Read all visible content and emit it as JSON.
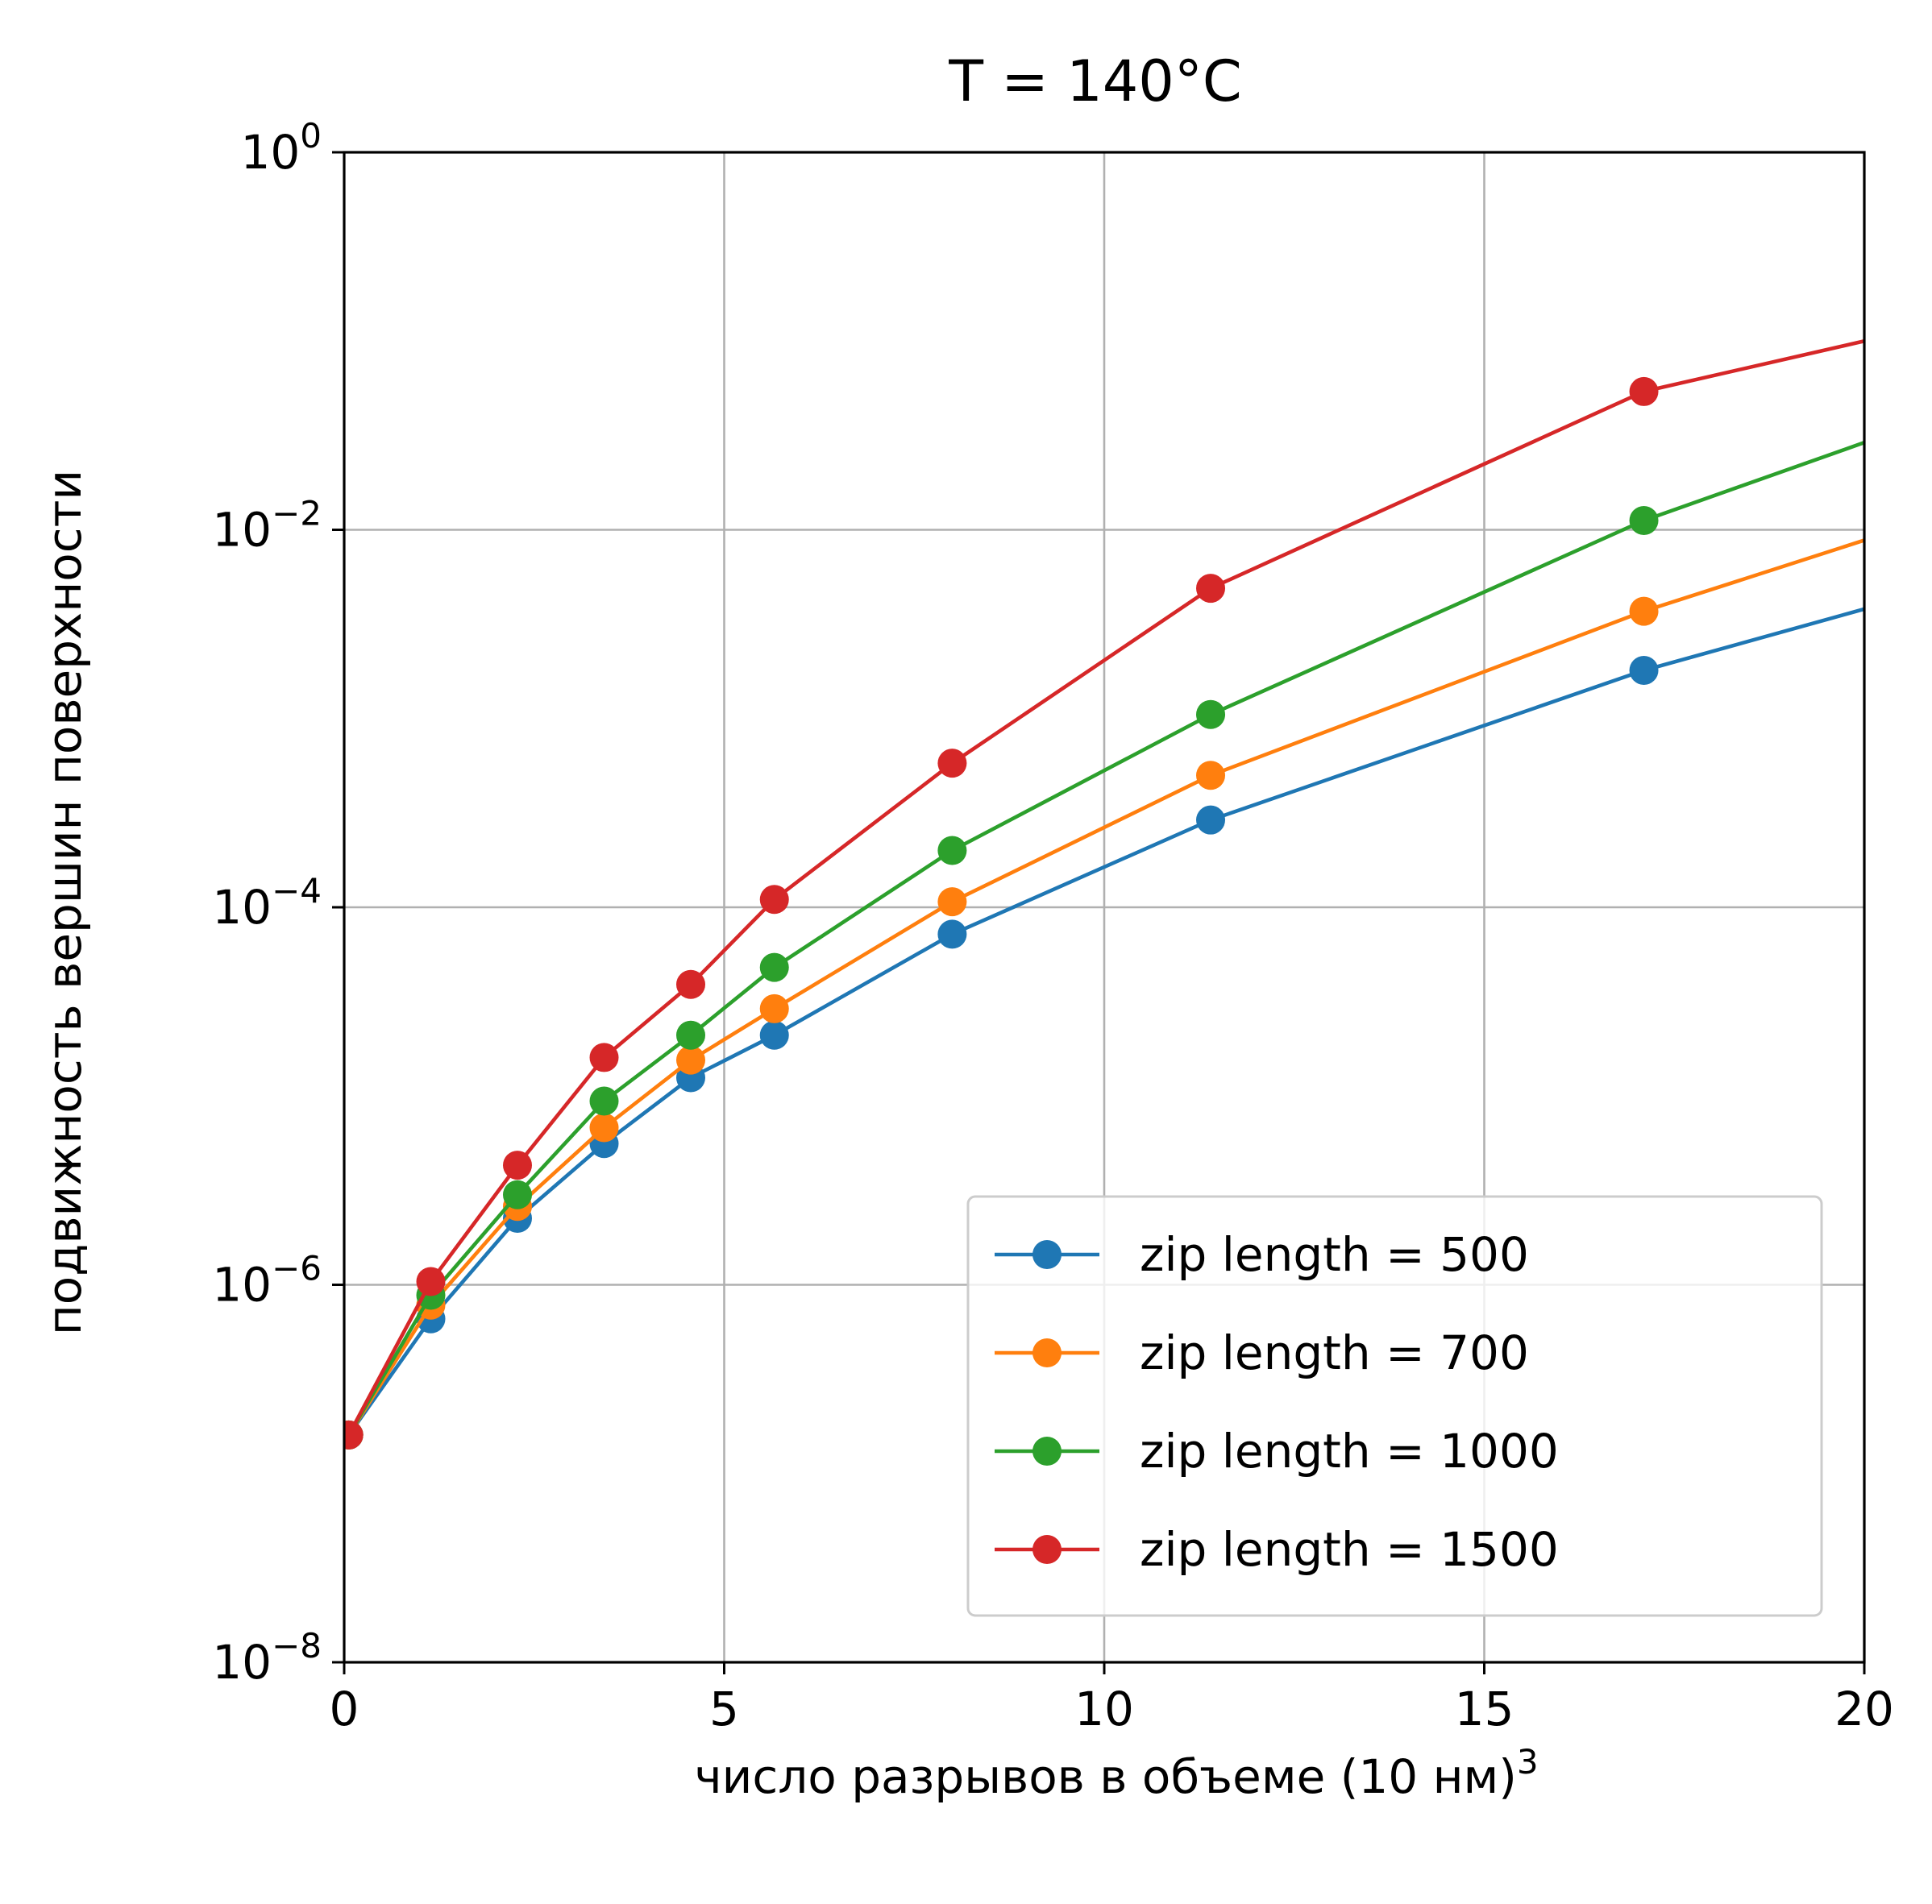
{
  "chart_data": {
    "type": "line",
    "title": "T = 140°C",
    "xlabel": "число разрывов в объеме (10 нм)",
    "xlabel_sup": "3",
    "ylabel": "подвижность вершин поверхности",
    "xlim": [
      0,
      20
    ],
    "ylim": [
      1e-08,
      1
    ],
    "yscale": "log",
    "grid": true,
    "legend_position": "lower-right",
    "x_ticks": [
      {
        "value": 0,
        "label": "0"
      },
      {
        "value": 5,
        "label": "5"
      },
      {
        "value": 10,
        "label": "10"
      },
      {
        "value": 15,
        "label": "15"
      },
      {
        "value": 20,
        "label": "20"
      }
    ],
    "y_ticks": [
      {
        "value": 1e-08,
        "base": "10",
        "exp": "−8"
      },
      {
        "value": 1e-06,
        "base": "10",
        "exp": "−6"
      },
      {
        "value": 0.0001,
        "base": "10",
        "exp": "−4"
      },
      {
        "value": 0.01,
        "base": "10",
        "exp": "−2"
      },
      {
        "value": 1,
        "base": "10",
        "exp": "0"
      }
    ],
    "x": [
      0.06,
      1.14,
      2.28,
      3.42,
      4.56,
      5.66,
      8.0,
      11.4,
      17.1,
      20.0
    ],
    "series": [
      {
        "name": "zip length = 500",
        "color": "#1f77b4",
        "values": [
          1.6e-07,
          6.6e-07,
          2.25e-06,
          5.6e-06,
          1.25e-05,
          2.1e-05,
          7.2e-05,
          0.00029,
          0.0018,
          0.0038
        ]
      },
      {
        "name": "zip length = 700",
        "color": "#ff7f0e",
        "values": [
          1.6e-07,
          7.8e-07,
          2.6e-06,
          6.8e-06,
          1.55e-05,
          2.9e-05,
          0.000107,
          0.0005,
          0.0037,
          0.0088
        ]
      },
      {
        "name": "zip length = 1000",
        "color": "#2ca02c",
        "values": [
          1.6e-07,
          8.8e-07,
          3e-06,
          9.4e-06,
          2.1e-05,
          4.8e-05,
          0.0002,
          0.00105,
          0.0112,
          0.029
        ]
      },
      {
        "name": "zip length = 1500",
        "color": "#d62728",
        "values": [
          1.6e-07,
          1.04e-06,
          4.3e-06,
          1.6e-05,
          3.9e-05,
          0.00011,
          0.00058,
          0.0049,
          0.054,
          0.1
        ]
      }
    ],
    "marker_points": 9
  }
}
